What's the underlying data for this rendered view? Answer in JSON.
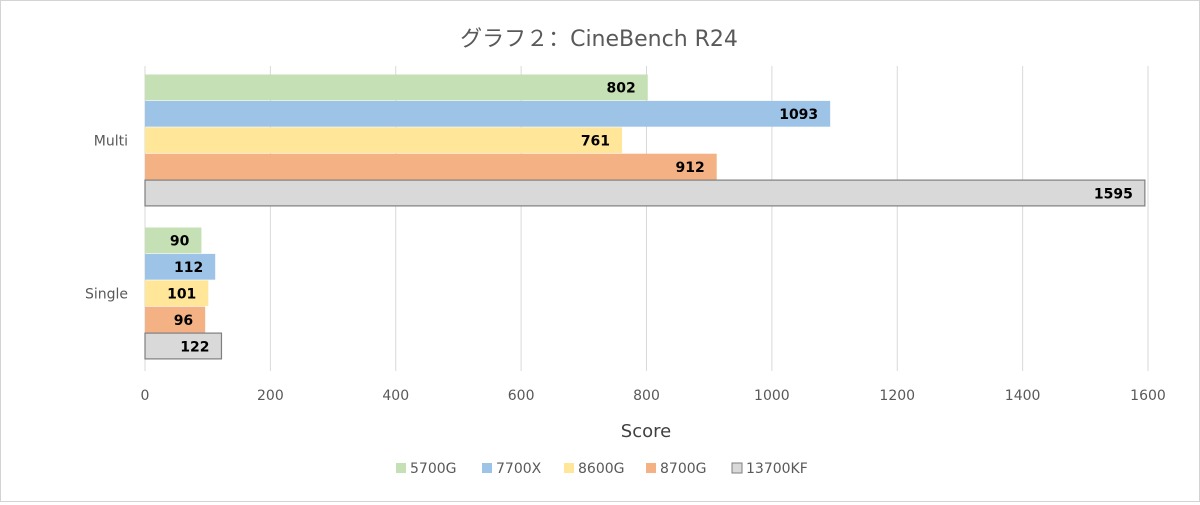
{
  "chart_data": {
    "type": "bar",
    "orientation": "horizontal",
    "title": "グラフ２：CineBench R24",
    "xlabel": "Score",
    "ylabel": "",
    "xlim": [
      0,
      1600
    ],
    "xticks": [
      0,
      200,
      400,
      600,
      800,
      1000,
      1200,
      1400,
      1600
    ],
    "grid": true,
    "legend_position": "bottom",
    "categories": [
      "Multi",
      "Single"
    ],
    "series": [
      {
        "name": "5700G",
        "color": "#c5e0b4",
        "values": [
          802,
          90
        ]
      },
      {
        "name": "7700X",
        "color": "#9dc3e6",
        "values": [
          1093,
          112
        ]
      },
      {
        "name": "8600G",
        "color": "#ffe699",
        "values": [
          761,
          101
        ]
      },
      {
        "name": "8700G",
        "color": "#f4b183",
        "values": [
          912,
          96
        ]
      },
      {
        "name": "13700KF",
        "color": "#d9d9d9",
        "values": [
          1595,
          122
        ]
      }
    ]
  }
}
